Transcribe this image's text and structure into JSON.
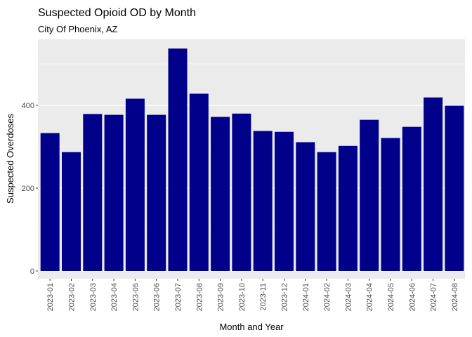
{
  "chart_data": {
    "type": "bar",
    "title": "Suspected Opioid OD by Month",
    "subtitle": "City Of Phoenix, AZ",
    "xlabel": "Month and Year",
    "ylabel": "Suspected Overdoses",
    "ylim": [
      0,
      600
    ],
    "yticks": [
      0,
      200,
      400
    ],
    "grid": true,
    "colors": {
      "bar": "#00008b",
      "panel": "#ebebeb",
      "grid": "#ffffff"
    },
    "categories": [
      "2023-01",
      "2023-02",
      "2023-03",
      "2023-04",
      "2023-05",
      "2023-06",
      "2023-07",
      "2023-08",
      "2023-09",
      "2023-10",
      "2023-11",
      "2023-12",
      "2024-01",
      "2024-02",
      "2024-03",
      "2024-04",
      "2024-05",
      "2024-06",
      "2024-07",
      "2024-08"
    ],
    "values": [
      333,
      287,
      379,
      377,
      416,
      377,
      537,
      428,
      372,
      380,
      338,
      336,
      311,
      287,
      302,
      365,
      321,
      348,
      419,
      399
    ]
  }
}
